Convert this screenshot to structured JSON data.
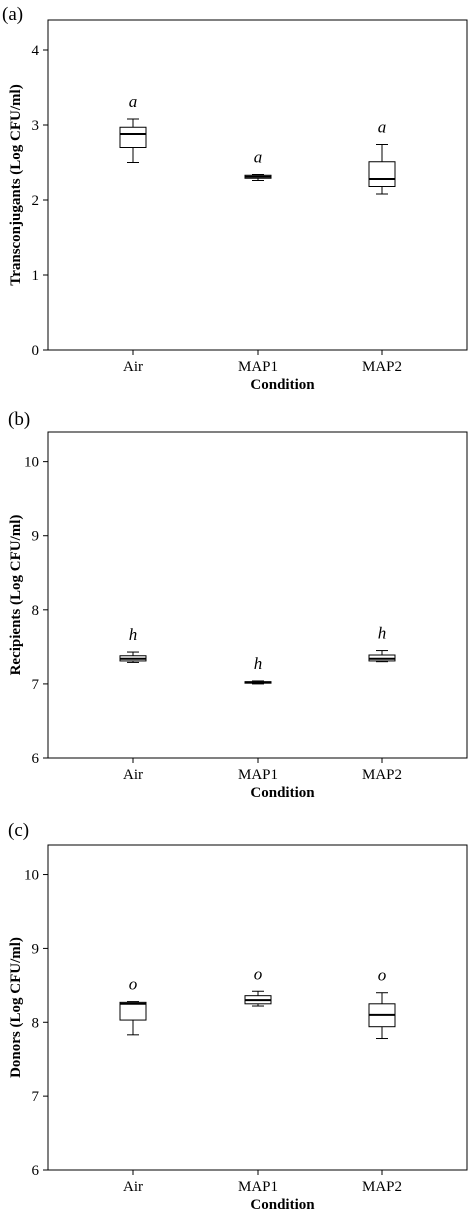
{
  "chart_data": [
    {
      "type": "box",
      "panel_label": "(a)",
      "title": "",
      "xlabel": "Condition",
      "ylabel": "Transconjugants (Log CFU/ml)",
      "ylim": [
        0,
        4.4
      ],
      "yticks": [
        "0",
        "1",
        "2",
        "3",
        "4"
      ],
      "grid": false,
      "categories": [
        "Air",
        "MAP1",
        "MAP2"
      ],
      "boxes": [
        {
          "category": "Air",
          "min": 2.5,
          "q1": 2.7,
          "median": 2.88,
          "q3": 2.97,
          "max": 3.08,
          "group_label": "a"
        },
        {
          "category": "MAP1",
          "min": 2.26,
          "q1": 2.29,
          "median": 2.31,
          "q3": 2.33,
          "max": 2.34,
          "group_label": "a"
        },
        {
          "category": "MAP2",
          "min": 2.08,
          "q1": 2.18,
          "median": 2.28,
          "q3": 2.51,
          "max": 2.74,
          "group_label": "a"
        }
      ]
    },
    {
      "type": "box",
      "panel_label": "(b)",
      "title": "",
      "xlabel": "Condition",
      "ylabel": "Recipients (Log CFU/ml)",
      "ylim": [
        6,
        10.4
      ],
      "yticks": [
        "6",
        "7",
        "8",
        "9",
        "10"
      ],
      "grid": false,
      "categories": [
        "Air",
        "MAP1",
        "MAP2"
      ],
      "boxes": [
        {
          "category": "Air",
          "min": 7.29,
          "q1": 7.31,
          "median": 7.34,
          "q3": 7.38,
          "max": 7.43,
          "group_label": "h"
        },
        {
          "category": "MAP1",
          "min": 7.0,
          "q1": 7.01,
          "median": 7.02,
          "q3": 7.03,
          "max": 7.04,
          "group_label": "h"
        },
        {
          "category": "MAP2",
          "min": 7.3,
          "q1": 7.31,
          "median": 7.34,
          "q3": 7.39,
          "max": 7.45,
          "group_label": "h"
        }
      ]
    },
    {
      "type": "box",
      "panel_label": "(c)",
      "title": "",
      "xlabel": "Condition",
      "ylabel": "Donors (Log CFU/ml)",
      "ylim": [
        6,
        10.4
      ],
      "yticks": [
        "6",
        "7",
        "8",
        "9",
        "10"
      ],
      "grid": false,
      "categories": [
        "Air",
        "MAP1",
        "MAP2"
      ],
      "boxes": [
        {
          "category": "Air",
          "min": 7.83,
          "q1": 8.03,
          "median": 8.25,
          "q3": 8.27,
          "max": 8.28,
          "group_label": "o"
        },
        {
          "category": "MAP1",
          "min": 8.22,
          "q1": 8.25,
          "median": 8.3,
          "q3": 8.36,
          "max": 8.42,
          "group_label": "o"
        },
        {
          "category": "MAP2",
          "min": 7.78,
          "q1": 7.94,
          "median": 8.1,
          "q3": 8.25,
          "max": 8.4,
          "group_label": "o"
        }
      ]
    }
  ]
}
